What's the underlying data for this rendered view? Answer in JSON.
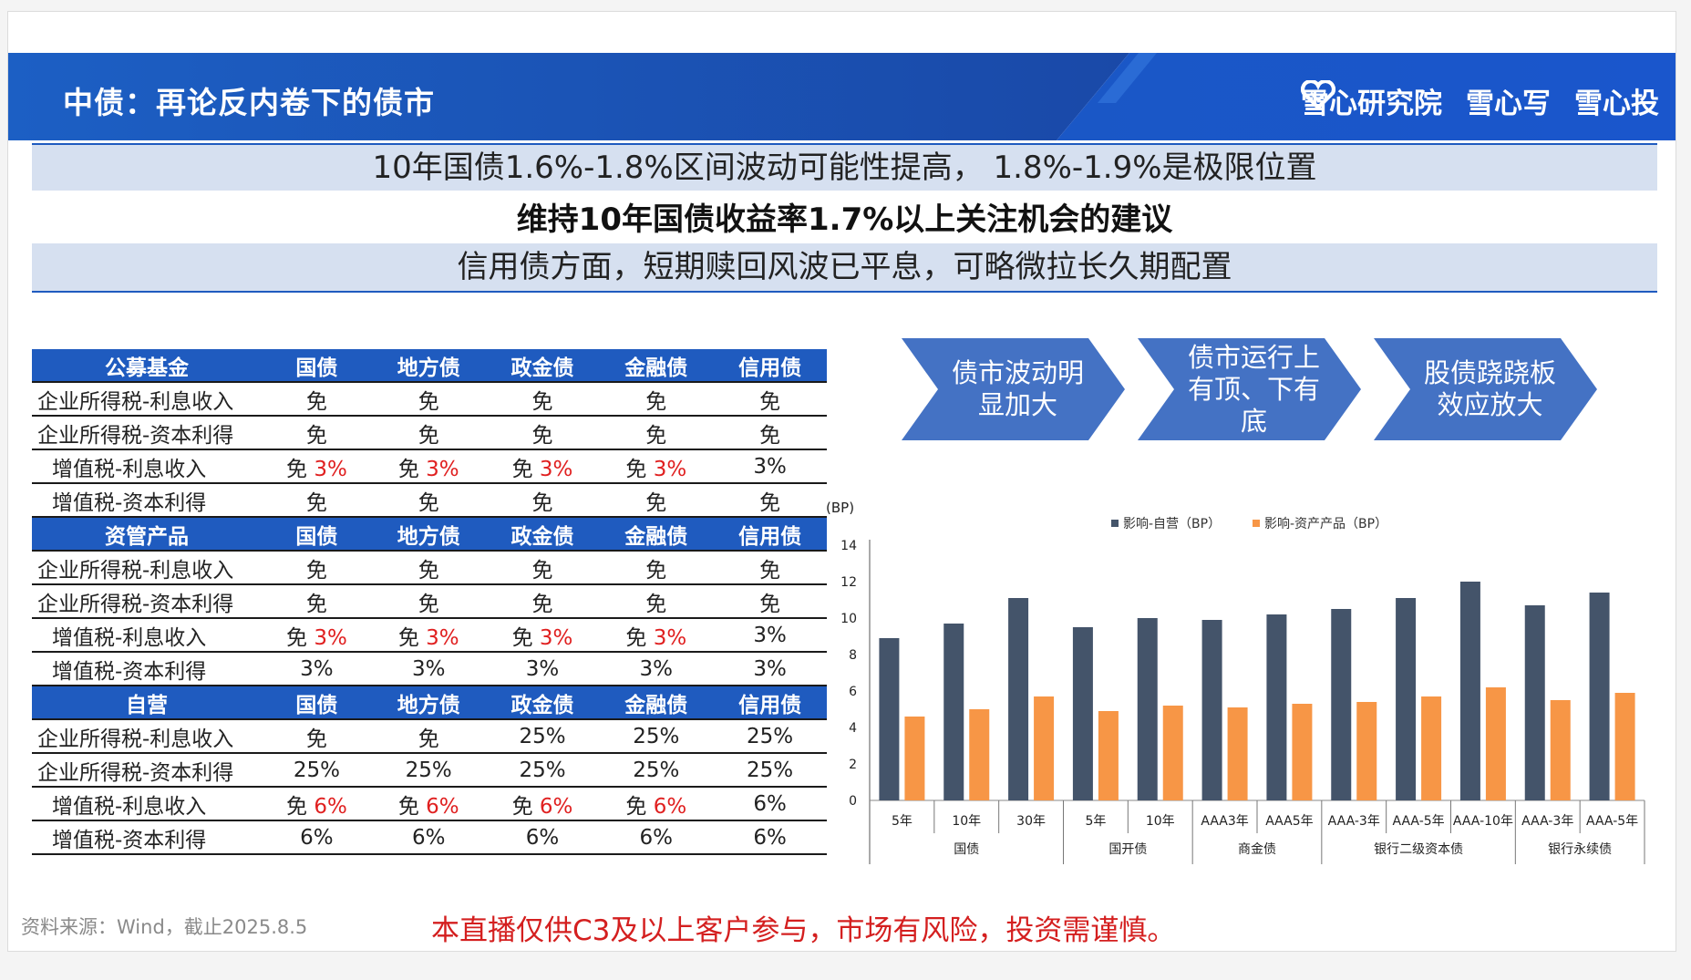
{
  "banner": {
    "title": "中债：再论反内卷下的债市",
    "logos": [
      "雪心研究院",
      "雪心写",
      "雪心投"
    ]
  },
  "headlines": {
    "line1": "10年国债1.6%-1.8%区间波动可能性提高， 1.8%-1.9%是极限位置",
    "line2": "维持10年国债收益率1.7%以上关注机会的建议",
    "line3": "信用债方面，短期赎回风波已平息，可略微拉长久期配置"
  },
  "tax_table": {
    "columns": [
      "国债",
      "地方债",
      "政金债",
      "金融债",
      "信用债"
    ],
    "sections": [
      {
        "name": "公募基金",
        "rows": [
          {
            "label": "企业所得税-利息收入",
            "indent": false,
            "cells": [
              {
                "a": "免",
                "b": ""
              },
              {
                "a": "免",
                "b": ""
              },
              {
                "a": "免",
                "b": ""
              },
              {
                "a": "免",
                "b": ""
              },
              {
                "a": "免",
                "b": ""
              }
            ]
          },
          {
            "label": "企业所得税-资本利得",
            "indent": false,
            "cells": [
              {
                "a": "免",
                "b": ""
              },
              {
                "a": "免",
                "b": ""
              },
              {
                "a": "免",
                "b": ""
              },
              {
                "a": "免",
                "b": ""
              },
              {
                "a": "免",
                "b": ""
              }
            ]
          },
          {
            "label": "增值税-利息收入",
            "indent": true,
            "cells": [
              {
                "a": "免 ",
                "b": "3%"
              },
              {
                "a": "免 ",
                "b": "3%"
              },
              {
                "a": "免 ",
                "b": "3%"
              },
              {
                "a": "免 ",
                "b": "3%"
              },
              {
                "a": "3%",
                "b": ""
              }
            ]
          },
          {
            "label": "增值税-资本利得",
            "indent": true,
            "cells": [
              {
                "a": "免",
                "b": ""
              },
              {
                "a": "免",
                "b": ""
              },
              {
                "a": "免",
                "b": ""
              },
              {
                "a": "免",
                "b": ""
              },
              {
                "a": "免",
                "b": ""
              }
            ]
          }
        ]
      },
      {
        "name": "资管产品",
        "rows": [
          {
            "label": "企业所得税-利息收入",
            "indent": false,
            "cells": [
              {
                "a": "免",
                "b": ""
              },
              {
                "a": "免",
                "b": ""
              },
              {
                "a": "免",
                "b": ""
              },
              {
                "a": "免",
                "b": ""
              },
              {
                "a": "免",
                "b": ""
              }
            ]
          },
          {
            "label": "企业所得税-资本利得",
            "indent": false,
            "cells": [
              {
                "a": "免",
                "b": ""
              },
              {
                "a": "免",
                "b": ""
              },
              {
                "a": "免",
                "b": ""
              },
              {
                "a": "免",
                "b": ""
              },
              {
                "a": "免",
                "b": ""
              }
            ]
          },
          {
            "label": "增值税-利息收入",
            "indent": true,
            "cells": [
              {
                "a": "免 ",
                "b": "3%"
              },
              {
                "a": "免 ",
                "b": "3%"
              },
              {
                "a": "免 ",
                "b": "3%"
              },
              {
                "a": "免 ",
                "b": "3%"
              },
              {
                "a": "3%",
                "b": ""
              }
            ]
          },
          {
            "label": "增值税-资本利得",
            "indent": true,
            "cells": [
              {
                "a": "3%",
                "b": ""
              },
              {
                "a": "3%",
                "b": ""
              },
              {
                "a": "3%",
                "b": ""
              },
              {
                "a": "3%",
                "b": ""
              },
              {
                "a": "3%",
                "b": ""
              }
            ]
          }
        ]
      },
      {
        "name": "自营",
        "rows": [
          {
            "label": "企业所得税-利息收入",
            "indent": false,
            "cells": [
              {
                "a": "免",
                "b": ""
              },
              {
                "a": "免",
                "b": ""
              },
              {
                "a": "25%",
                "b": ""
              },
              {
                "a": "25%",
                "b": ""
              },
              {
                "a": "25%",
                "b": ""
              }
            ]
          },
          {
            "label": "企业所得税-资本利得",
            "indent": false,
            "cells": [
              {
                "a": "25%",
                "b": ""
              },
              {
                "a": "25%",
                "b": ""
              },
              {
                "a": "25%",
                "b": ""
              },
              {
                "a": "25%",
                "b": ""
              },
              {
                "a": "25%",
                "b": ""
              }
            ]
          },
          {
            "label": "增值税-利息收入",
            "indent": true,
            "cells": [
              {
                "a": "免 ",
                "b": "6%"
              },
              {
                "a": "免 ",
                "b": "6%"
              },
              {
                "a": "免 ",
                "b": "6%"
              },
              {
                "a": "免 ",
                "b": "6%"
              },
              {
                "a": "6%",
                "b": ""
              }
            ]
          },
          {
            "label": "增值税-资本利得",
            "indent": true,
            "cells": [
              {
                "a": "6%",
                "b": ""
              },
              {
                "a": "6%",
                "b": ""
              },
              {
                "a": "6%",
                "b": ""
              },
              {
                "a": "6%",
                "b": ""
              },
              {
                "a": "6%",
                "b": ""
              }
            ]
          }
        ]
      }
    ]
  },
  "arrows": [
    {
      "lines": [
        "债市波动明",
        "显加大"
      ]
    },
    {
      "lines": [
        "债市运行上",
        "有顶、下有",
        "底"
      ]
    },
    {
      "lines": [
        "股债跷跷板",
        "效应放大"
      ]
    }
  ],
  "chart_data": {
    "type": "bar",
    "unit_label": "(BP)",
    "ylim": [
      0,
      14
    ],
    "yticks": [
      0,
      2,
      4,
      6,
      8,
      10,
      12,
      14
    ],
    "categories": [
      "5年",
      "10年",
      "30年",
      "5年",
      "10年",
      "AAA3年",
      "AAA5年",
      "AAA-3年",
      "AAA-5年",
      "AAA-10年",
      "AAA-3年",
      "AAA-5年"
    ],
    "groups": [
      {
        "name": "国债",
        "count": 3
      },
      {
        "name": "国开债",
        "count": 2
      },
      {
        "name": "商金债",
        "count": 2
      },
      {
        "name": "银行二级资本债",
        "count": 3
      },
      {
        "name": "银行永续债",
        "count": 2
      }
    ],
    "series": [
      {
        "name": "影响-自营（BP）",
        "color": "#44546a",
        "values": [
          8.9,
          9.7,
          11.1,
          9.5,
          10.0,
          9.9,
          10.2,
          10.5,
          11.1,
          12.0,
          10.7,
          11.4
        ]
      },
      {
        "name": "影响-资产产品（BP）",
        "color": "#f79646",
        "values": [
          4.6,
          5.0,
          5.7,
          4.9,
          5.2,
          5.1,
          5.3,
          5.4,
          5.7,
          6.2,
          5.5,
          5.9
        ]
      }
    ]
  },
  "footer": {
    "source": "资料来源：Wind，截止2025.8.5",
    "disclaimer": "本直播仅供C3及以上客户参与，市场有风险，投资需谨慎。"
  }
}
